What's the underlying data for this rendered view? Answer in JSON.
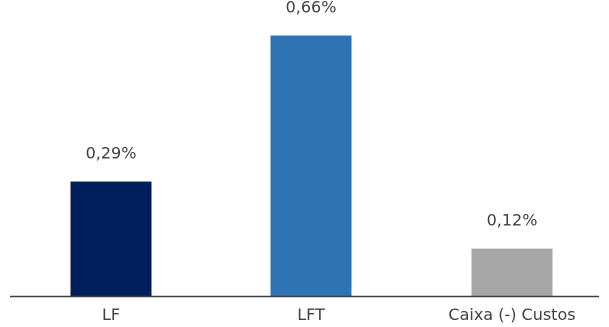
{
  "chart_data": {
    "type": "bar",
    "categories": [
      "LF",
      "LFT",
      "Caixa (-) Custos"
    ],
    "values": [
      0.29,
      0.66,
      0.12
    ],
    "value_labels": [
      "0,29%",
      "0,66%",
      "0,12%"
    ],
    "bar_colors": [
      "#001f5b",
      "#2e74b5",
      "#a6a6a6"
    ],
    "title": "",
    "xlabel": "",
    "ylabel": "",
    "ylim": [
      0,
      0.75
    ],
    "grid": false,
    "legend": "none",
    "axis_color": "#404040"
  }
}
